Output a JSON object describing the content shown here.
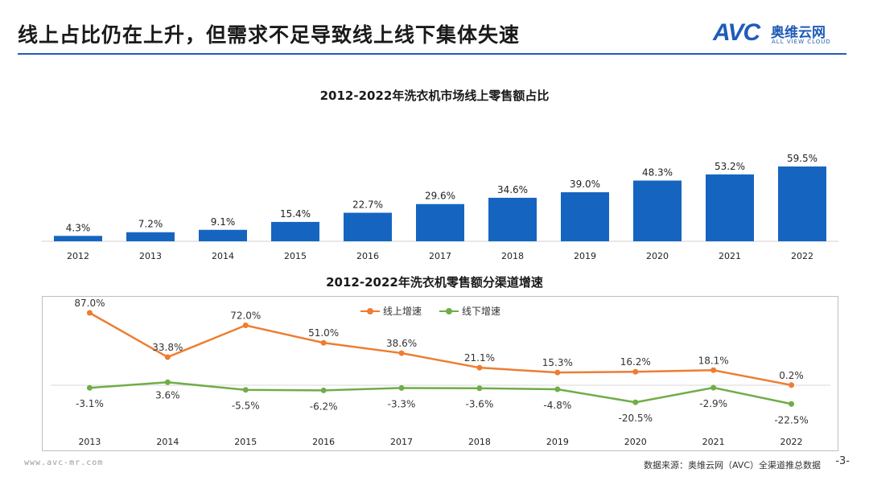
{
  "page": {
    "title": "线上占比仍在上升，但需求不足导致线上线下集体失速",
    "logo_mark": "AVC",
    "logo_cn": "奥维云网",
    "logo_en": "ALL VIEW CLOUD",
    "footer_url": "www.avc-mr.com",
    "footer_source": "数据来源：奥维云网（AVC）全渠道推总数据",
    "page_number": "-3-"
  },
  "colors": {
    "accent": "#1f5cb8",
    "bar": "#1565c0",
    "online": "#ed7d31",
    "offline": "#70ad47"
  },
  "chart_data": [
    {
      "type": "bar",
      "title": "2012-2022年洗衣机市场线上零售额占比",
      "categories": [
        "2012",
        "2013",
        "2014",
        "2015",
        "2016",
        "2017",
        "2018",
        "2019",
        "2020",
        "2021",
        "2022"
      ],
      "values": [
        4.3,
        7.2,
        9.1,
        15.4,
        22.7,
        29.6,
        34.6,
        39.0,
        48.3,
        53.2,
        59.5
      ],
      "labels": [
        "4.3%",
        "7.2%",
        "9.1%",
        "15.4%",
        "22.7%",
        "29.6%",
        "34.6%",
        "39.0%",
        "48.3%",
        "53.2%",
        "59.5%"
      ],
      "ylim": [
        0,
        70
      ],
      "grid": false
    },
    {
      "type": "line",
      "title": "2012-2022年洗衣机零售额分渠道增速",
      "categories": [
        "2013",
        "2014",
        "2015",
        "2016",
        "2017",
        "2018",
        "2019",
        "2020",
        "2021",
        "2022"
      ],
      "series": [
        {
          "name": "线上增速",
          "values": [
            87.0,
            33.8,
            72.0,
            51.0,
            38.6,
            21.1,
            15.3,
            16.2,
            18.1,
            0.2
          ],
          "labels": [
            "87.0%",
            "33.8%",
            "72.0%",
            "51.0%",
            "38.6%",
            "21.1%",
            "15.3%",
            "16.2%",
            "18.1%",
            "0.2%"
          ]
        },
        {
          "name": "线下增速",
          "values": [
            -3.1,
            3.6,
            -5.5,
            -6.2,
            -3.3,
            -3.6,
            -4.8,
            -20.5,
            -2.9,
            -22.5
          ],
          "labels": [
            "-3.1%",
            "3.6%",
            "-5.5%",
            "-6.2%",
            "-3.3%",
            "-3.6%",
            "-4.8%",
            "-20.5%",
            "-2.9%",
            "-22.5%"
          ]
        }
      ],
      "ylim": [
        -30,
        95
      ],
      "legend_position": "top-center",
      "grid": false
    }
  ]
}
